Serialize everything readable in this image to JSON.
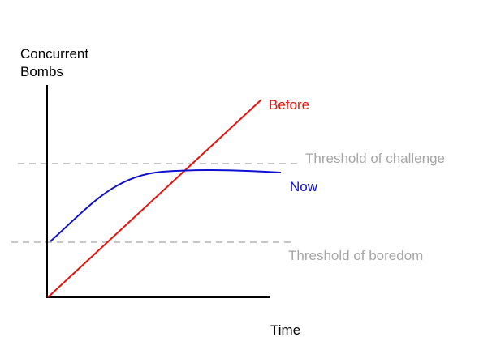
{
  "labels": {
    "y_axis_line1": "Concurrent",
    "y_axis_line2": "Bombs",
    "x_axis": "Time",
    "before": "Before",
    "now": "Now",
    "threshold_challenge": "Threshold of challenge",
    "threshold_boredom": "Threshold of boredom"
  },
  "colors": {
    "axis": "#000000",
    "before": "#e8120c",
    "now": "#1010d0",
    "threshold": "#b3b3b3",
    "threshold_text": "#a6a6a6"
  }
}
